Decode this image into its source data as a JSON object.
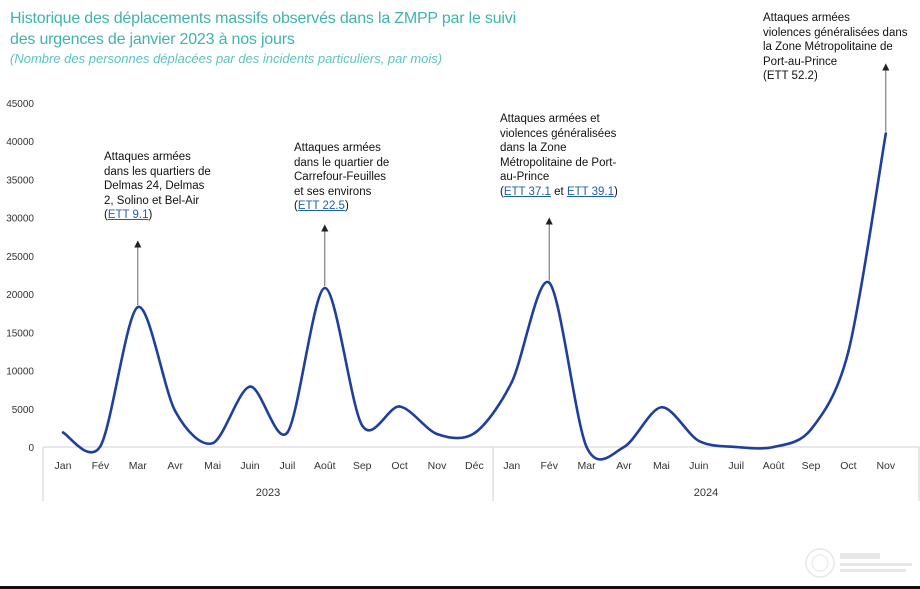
{
  "title": "Historique des déplacements massifs observés dans la ZMPP par le suivi des urgences de janvier 2023 à nos jours",
  "subtitle": "(Nombre des personnes déplacées par des incidents particuliers, par mois)",
  "colors": {
    "title": "#3fb3b0",
    "line": "#1f3f9c",
    "link": "#1f5fb0"
  },
  "chart_data": {
    "type": "line",
    "title": "Historique des déplacements massifs observés dans la ZMPP par le suivi des urgences de janvier 2023 à nos jours",
    "subtitle": "(Nombre des personnes déplacées par des incidents particuliers, par mois)",
    "ylim": [
      0,
      45000
    ],
    "yticks": [
      0,
      5000,
      10000,
      15000,
      20000,
      25000,
      30000,
      35000,
      40000,
      45000
    ],
    "grid": false,
    "categories": [
      "Jan",
      "Fév",
      "Mar",
      "Avr",
      "Mai",
      "Juin",
      "Juil",
      "Août",
      "Sep",
      "Oct",
      "Nov",
      "Déc",
      "Jan",
      "Fév",
      "Mar",
      "Avr",
      "Mai",
      "Juin",
      "Juil",
      "Août",
      "Sep",
      "Oct",
      "Nov"
    ],
    "groups": [
      {
        "label": "2023",
        "count": 12
      },
      {
        "label": "2024",
        "count": 11
      }
    ],
    "series": [
      {
        "values": [
          1900,
          100,
          18300,
          4700,
          500,
          7900,
          1900,
          20800,
          2800,
          5300,
          1700,
          1800,
          8500,
          21500,
          0,
          0,
          5200,
          800,
          0,
          0,
          2300,
          12500,
          41000
        ]
      }
    ],
    "annotations": [
      {
        "lines": [
          "Attaques armées",
          "dans les quartiers de",
          "Delmas 24, Delmas",
          "2, Solino et Bel-Air"
        ],
        "refs": [
          "ETT 9.1"
        ],
        "point_index": 2
      },
      {
        "lines": [
          "Attaques armées",
          "dans le quartier de",
          "Carrefour-Feuilles",
          "et ses environs"
        ],
        "refs": [
          "ETT 22.5"
        ],
        "point_index": 7
      },
      {
        "lines": [
          "Attaques armées et",
          "violences généralisées",
          "dans la Zone",
          "Métropolitaine de Port-",
          "au-Prince"
        ],
        "refs": [
          "ETT 37.1",
          "ETT 39.1"
        ],
        "ref_joiner": "et",
        "point_index": 13
      },
      {
        "lines": [
          "Attaques armées",
          "violences généralisées dans",
          "la Zone Métropolitaine de",
          "Port-au-Prince"
        ],
        "refs": [
          "ETT 52.2"
        ],
        "refs_linked": false,
        "point_index": 22
      }
    ]
  }
}
